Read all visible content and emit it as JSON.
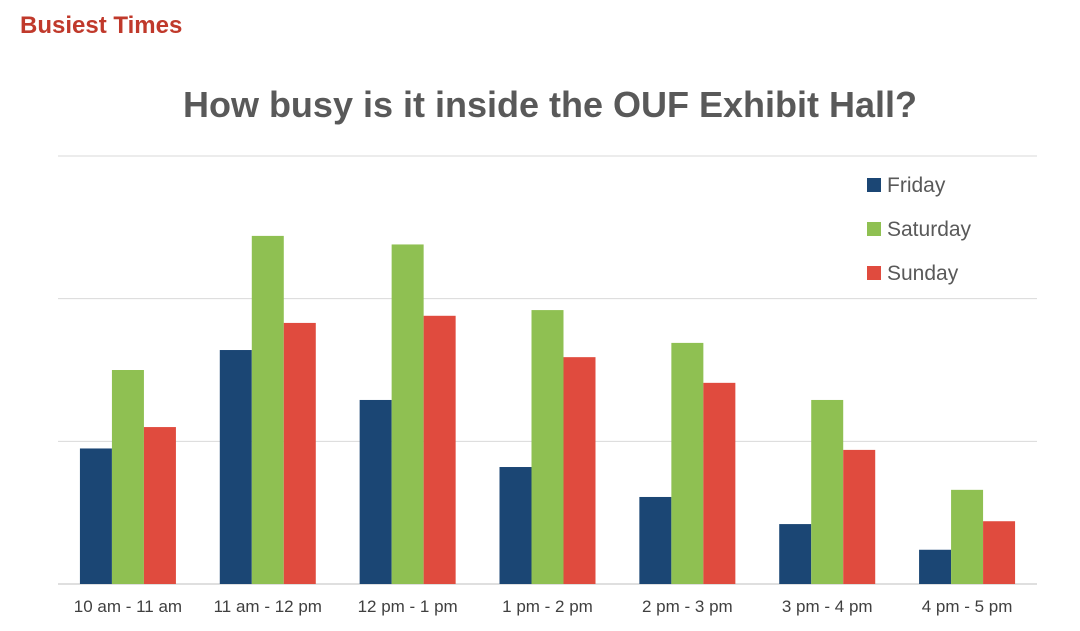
{
  "page": {
    "heading": "Busiest Times"
  },
  "chart_data": {
    "type": "bar",
    "title": "How busy is it inside the OUF Exhibit Hall?",
    "xlabel": "",
    "ylabel": "",
    "ylim": [
      0,
      3
    ],
    "grid": true,
    "legend_position": "top-right",
    "categories": [
      "10 am - 11 am",
      "11 am - 12 pm",
      "12 pm - 1 pm",
      "1 pm - 2 pm",
      "2 pm - 3 pm",
      "3 pm - 4 pm",
      "4 pm - 5 pm"
    ],
    "series": [
      {
        "name": "Friday",
        "color": "#1b4674",
        "values": [
          0.95,
          1.64,
          1.29,
          0.82,
          0.61,
          0.42,
          0.24
        ]
      },
      {
        "name": "Saturday",
        "color": "#8fc052",
        "values": [
          1.5,
          2.44,
          2.38,
          1.92,
          1.69,
          1.29,
          0.66
        ]
      },
      {
        "name": "Sunday",
        "color": "#e04b3e",
        "values": [
          1.1,
          1.83,
          1.88,
          1.59,
          1.41,
          0.94,
          0.44
        ]
      }
    ]
  }
}
